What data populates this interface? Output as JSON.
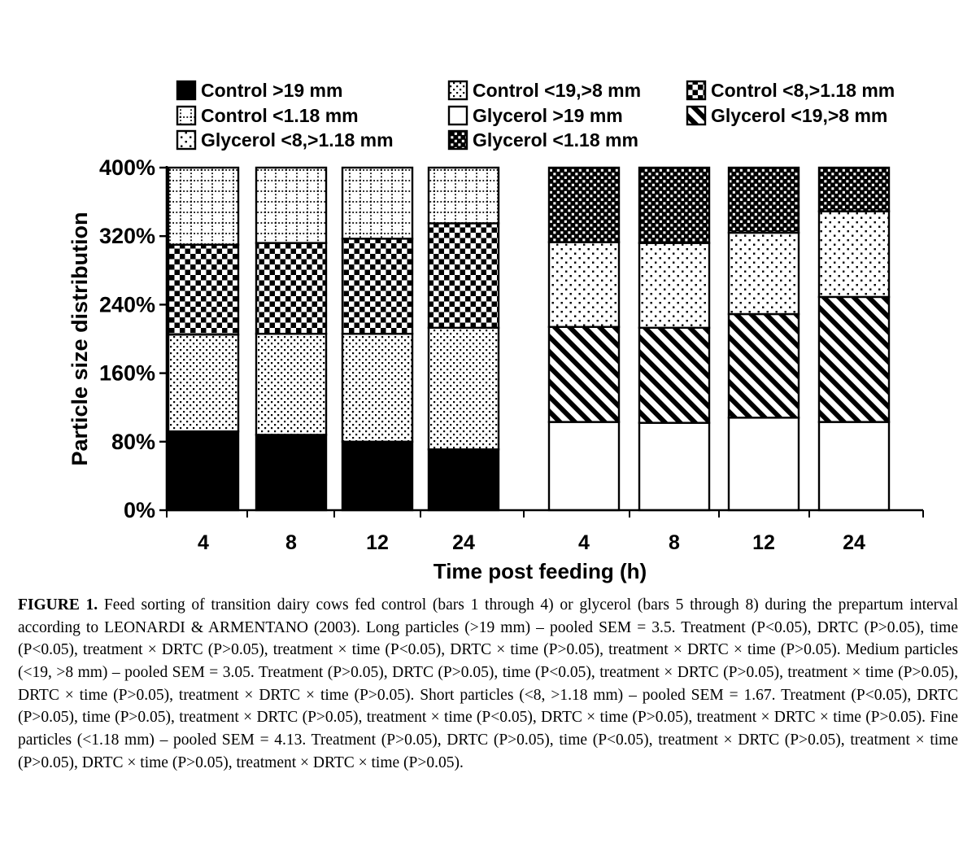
{
  "figure": {
    "caption_label": "FIGURE 1.",
    "caption_text": " Feed sorting of transition dairy cows fed control (bars 1 through 4) or glycerol (bars 5 through 8) during the prepartum interval according to LEONARDI & ARMENTANO (2003). Long particles (>19 mm) – pooled SEM = 3.5. Treatment (P<0.05), DRTC (P>0.05), time (P<0.05), treatment × DRTC (P>0.05), treatment × time (P<0.05), DRTC × time (P>0.05), treatment × DRTC × time (P>0.05). Medium particles (<19, >8 mm) – pooled SEM = 3.05. Treatment (P>0.05), DRTC (P>0.05), time (P<0.05), treatment × DRTC (P>0.05), treatment × time (P>0.05), DRTC × time (P>0.05), treatment × DRTC × time (P>0.05). Short particles (<8, >1.18 mm) – pooled SEM = 1.67. Treatment (P<0.05), DRTC (P>0.05), time (P>0.05), treatment × DRTC (P>0.05), treatment × time (P<0.05), DRTC × time (P>0.05), treatment × DRTC × time (P>0.05). Fine particles (<1.18 mm) – pooled SEM = 4.13. Treatment (P>0.05), DRTC (P>0.05), time (P<0.05), treatment × DRTC (P>0.05), treatment × time (P>0.05), DRTC × time (P>0.05), treatment × DRTC × time (P>0.05)."
  },
  "chart_data": {
    "type": "bar",
    "stacked": true,
    "title": "",
    "xlabel": "Time post feeding (h)",
    "ylabel": "Particle size distribution",
    "ylim": [
      0,
      400
    ],
    "yticks": [
      0,
      80,
      160,
      240,
      320,
      400
    ],
    "ytick_suffix": "%",
    "categories": [
      "4",
      "8",
      "12",
      "24",
      "4",
      "8",
      "12",
      "24"
    ],
    "groups": [
      "Control bars 1-4",
      "Glycerol bars 5-8"
    ],
    "grid": false,
    "legend_position": "top",
    "legend_columns": 3,
    "series": [
      {
        "name": "Control >19 mm",
        "pattern": "solid",
        "values": [
          92,
          88,
          80,
          71,
          null,
          null,
          null,
          null
        ]
      },
      {
        "name": "Control <19,>8 mm",
        "pattern": "dots-medium",
        "values": [
          113,
          118,
          126,
          142,
          null,
          null,
          null,
          null
        ]
      },
      {
        "name": "Control <8,>1.18 mm",
        "pattern": "checker",
        "values": [
          105,
          106,
          111,
          122,
          null,
          null,
          null,
          null
        ]
      },
      {
        "name": "Control <1.18 mm",
        "pattern": "grid-dotted",
        "values": [
          90,
          88,
          83,
          65,
          null,
          null,
          null,
          null
        ]
      },
      {
        "name": "Glycerol >19 mm",
        "pattern": "white",
        "values": [
          null,
          null,
          null,
          null,
          103,
          102,
          108,
          103
        ]
      },
      {
        "name": "Glycerol <19,>8 mm",
        "pattern": "diagonal-stripes",
        "values": [
          null,
          null,
          null,
          null,
          111,
          111,
          121,
          146
        ]
      },
      {
        "name": "Glycerol <8,>1.18 mm",
        "pattern": "dots-sparse",
        "values": [
          null,
          null,
          null,
          null,
          99,
          99,
          95,
          100
        ]
      },
      {
        "name": "Glycerol <1.18 mm",
        "pattern": "checker-confetti",
        "values": [
          null,
          null,
          null,
          null,
          87,
          88,
          76,
          51
        ]
      }
    ],
    "colors": {
      "ink": "#000000",
      "background": "#ffffff"
    }
  }
}
